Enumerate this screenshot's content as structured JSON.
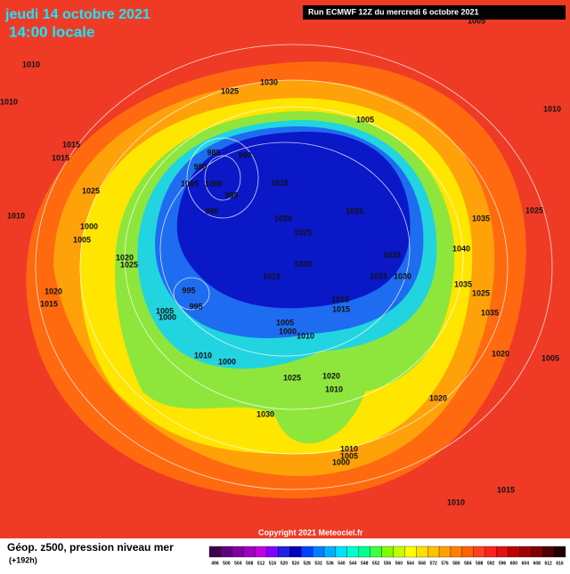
{
  "header": {
    "date": "jeudi 14 octobre 2021",
    "time": "14:00 locale",
    "run": "Run ECMWF 12Z du mercredi 6 octobre 2021"
  },
  "footer": {
    "title": "Géop. z500, pression niveau mer",
    "lead": "(+192h)",
    "copyright": "Copyright 2021 Meteociel.fr"
  },
  "colorbar": {
    "values": [
      496,
      500,
      504,
      508,
      512,
      516,
      520,
      524,
      528,
      532,
      536,
      540,
      544,
      548,
      552,
      556,
      560,
      564,
      568,
      572,
      576,
      580,
      584,
      588,
      592,
      596,
      600,
      604,
      608,
      612,
      616
    ],
    "colors": [
      "#400050",
      "#600080",
      "#8000a0",
      "#a000c0",
      "#c000e0",
      "#8000ff",
      "#2020e0",
      "#0000c0",
      "#0040ff",
      "#0080ff",
      "#00b0ff",
      "#00e0ff",
      "#00ffd0",
      "#00ff90",
      "#40ff40",
      "#80ff00",
      "#c0ff00",
      "#ffff00",
      "#ffe000",
      "#ffc000",
      "#ffa000",
      "#ff8000",
      "#ff6000",
      "#ff4020",
      "#ff2020",
      "#e01010",
      "#c00000",
      "#a00000",
      "#800000",
      "#500000",
      "#200000"
    ]
  },
  "isobars": [
    1010,
    1010,
    1005,
    1025,
    1030,
    1005,
    1010,
    1015,
    1015,
    1025,
    1010,
    1000,
    1005,
    1020,
    1025,
    1020,
    1015,
    985,
    990,
    990,
    1005,
    1000,
    995,
    990,
    1010,
    1020,
    1025,
    1025,
    1035,
    1040,
    1025,
    1030,
    1035,
    1025,
    1030,
    1035,
    1025,
    1015,
    995,
    995,
    1005,
    1000,
    1005,
    1000,
    1010,
    1015,
    1015,
    1010,
    1000,
    1025,
    1020,
    1010,
    1035,
    1020,
    1005,
    1020,
    1030,
    1010,
    1005,
    1000,
    1015,
    1010
  ]
}
